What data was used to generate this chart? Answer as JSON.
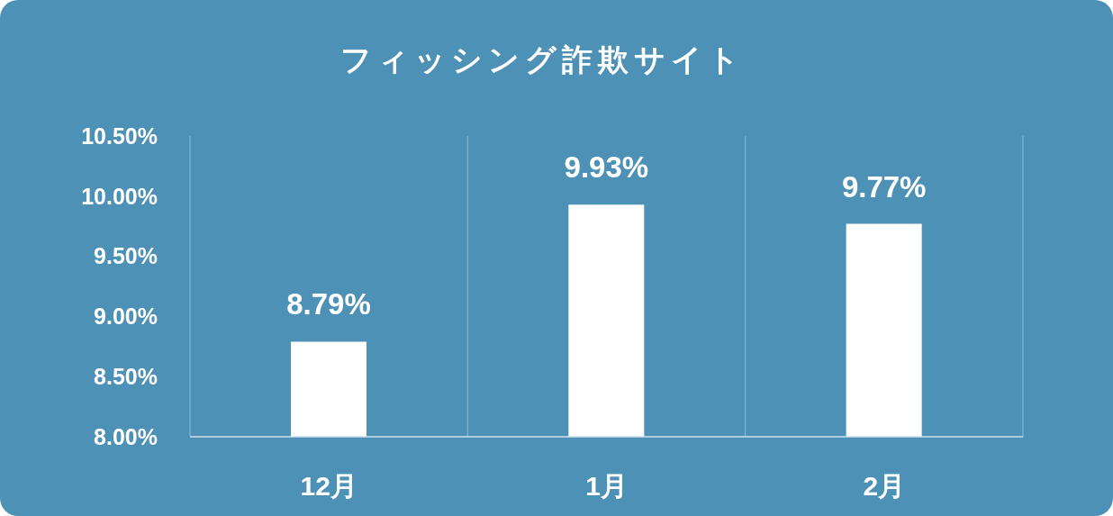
{
  "chart_data": {
    "type": "bar",
    "title": "フィッシング詐欺サイト",
    "categories": [
      "12月",
      "1月",
      "2月"
    ],
    "values": [
      8.79,
      9.93,
      9.77
    ],
    "color": "#ffffff",
    "value_labels": [
      "8.79%",
      "9.93%",
      "9.77%"
    ],
    "ylim": [
      8,
      10.5
    ],
    "yticks": [
      {
        "value": 8,
        "label": "8.00%"
      },
      {
        "value": 8.5,
        "label": "8.50%"
      },
      {
        "value": 9,
        "label": "9.00%"
      },
      {
        "value": 9.5,
        "label": "9.50%"
      },
      {
        "value": 10,
        "label": "10.00%"
      },
      {
        "value": 10.5,
        "label": "10.50%"
      }
    ],
    "grid": "x"
  }
}
